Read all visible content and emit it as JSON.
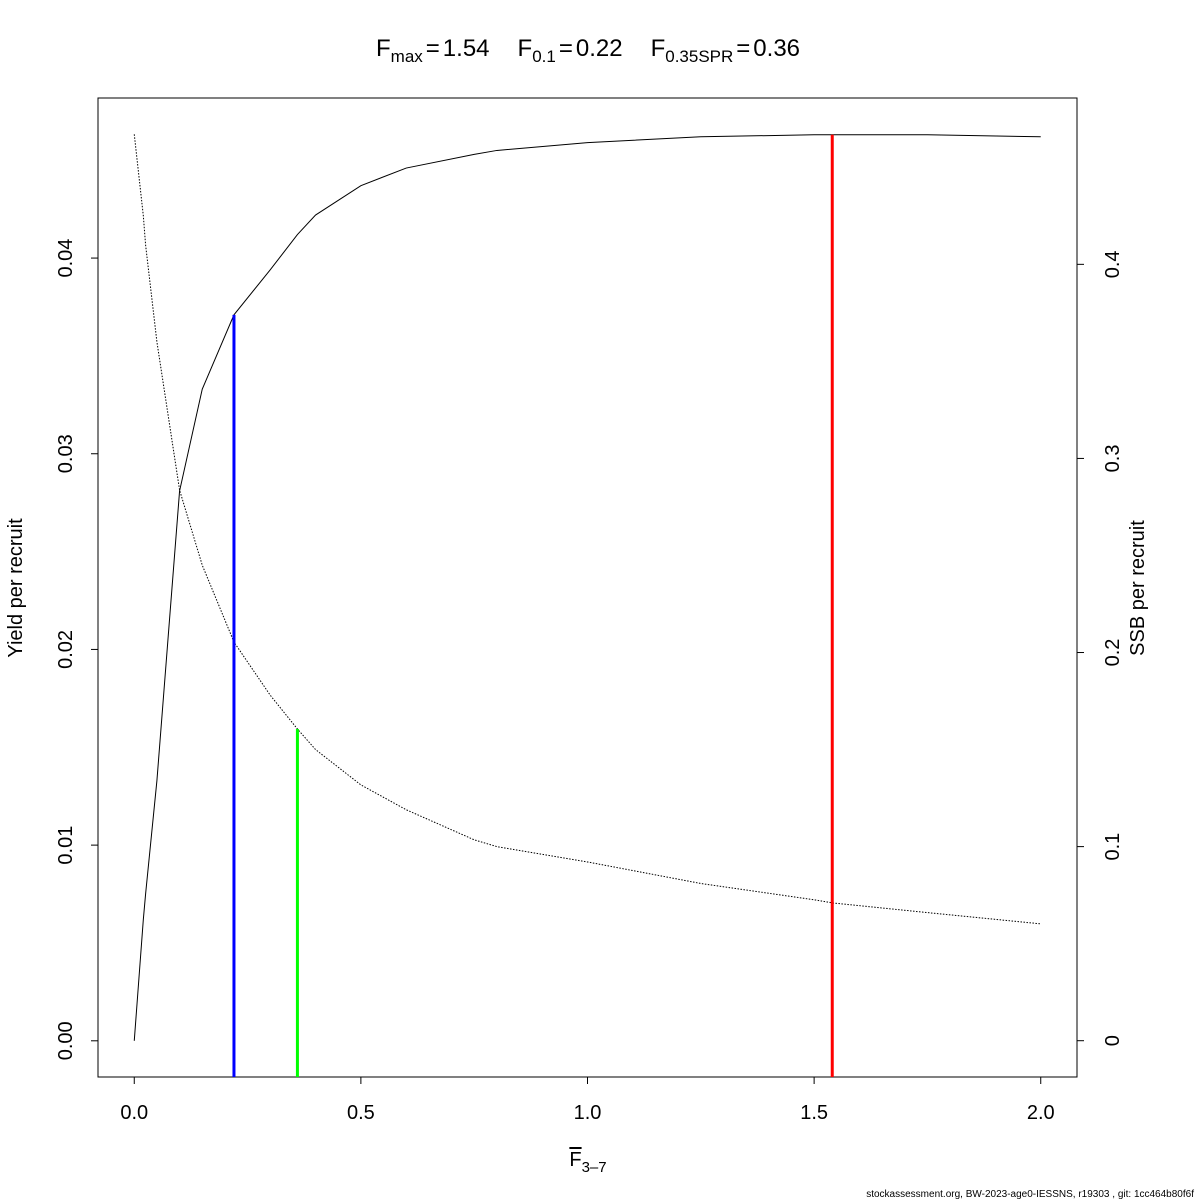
{
  "chart_data": {
    "type": "line",
    "title_parts": [
      {
        "symbol": "F",
        "subscript": "max",
        "relation": "=",
        "value": 1.54,
        "color": "#ff0000",
        "axis": "y",
        "top": 0.0463
      },
      {
        "symbol": "F",
        "subscript": "0.1",
        "relation": "=",
        "value": 0.22,
        "color": "#0000ff",
        "axis": "y",
        "top": 0.0371
      },
      {
        "symbol": "F",
        "subscript": "0.35SPR",
        "relation": "=",
        "value": 0.36,
        "color": "#00ff00",
        "axis": "y2",
        "top": 0.1606
      }
    ],
    "xlabel": "F",
    "xlabel_subscript": "3–7",
    "ylabel": "Yield per recruit",
    "y2label": "SSB per recruit",
    "footer": "stockassessment.org, BW-2023-age0-IESSNS, r19303 , git: 1cc464b80f6f",
    "x": [
      0,
      0.02,
      0.025,
      0.05,
      0.1,
      0.15,
      0.22,
      0.3,
      0.36,
      0.4,
      0.5,
      0.6,
      0.75,
      0.8,
      1.0,
      1.25,
      1.5,
      1.54,
      1.75,
      2.0
    ],
    "series": [
      {
        "name": "Yield per recruit",
        "color": "#000000",
        "dash": "solid",
        "axis": "y",
        "values": [
          0,
          0.0062,
          0.0075,
          0.0133,
          0.0281,
          0.0333,
          0.0371,
          0.0394,
          0.0412,
          0.0422,
          0.0437,
          0.0446,
          0.0453,
          0.0455,
          0.0459,
          0.0462,
          0.0463,
          0.0463,
          0.0463,
          0.0462
        ]
      },
      {
        "name": "SSB per recruit",
        "color": "#000000",
        "dash": "dotted",
        "axis": "y2",
        "values": [
          0.467,
          0.425,
          0.41,
          0.36,
          0.2837,
          0.245,
          0.2054,
          0.178,
          0.1606,
          0.15,
          0.1318,
          0.119,
          0.1035,
          0.1,
          0.0921,
          0.081,
          0.0726,
          0.071,
          0.066,
          0.0602
        ]
      }
    ],
    "xlim": [
      -0.08,
      2.08
    ],
    "ylim": [
      -0.00185,
      0.04818
    ],
    "y2lim": [
      -0.0187,
      0.4857
    ],
    "xticks": [
      {
        "value": 0,
        "label": "0.0"
      },
      {
        "value": 0.5,
        "label": "0.5"
      },
      {
        "value": 1,
        "label": "1.0"
      },
      {
        "value": 1.5,
        "label": "1.5"
      },
      {
        "value": 2,
        "label": "2.0"
      }
    ],
    "yticks": [
      {
        "value": 0,
        "label": "0.00"
      },
      0.01,
      0.02,
      0.03,
      0.04
    ],
    "y2ticks": [
      0,
      0.1,
      0.2,
      0.3,
      0.4
    ],
    "grid": false
  }
}
